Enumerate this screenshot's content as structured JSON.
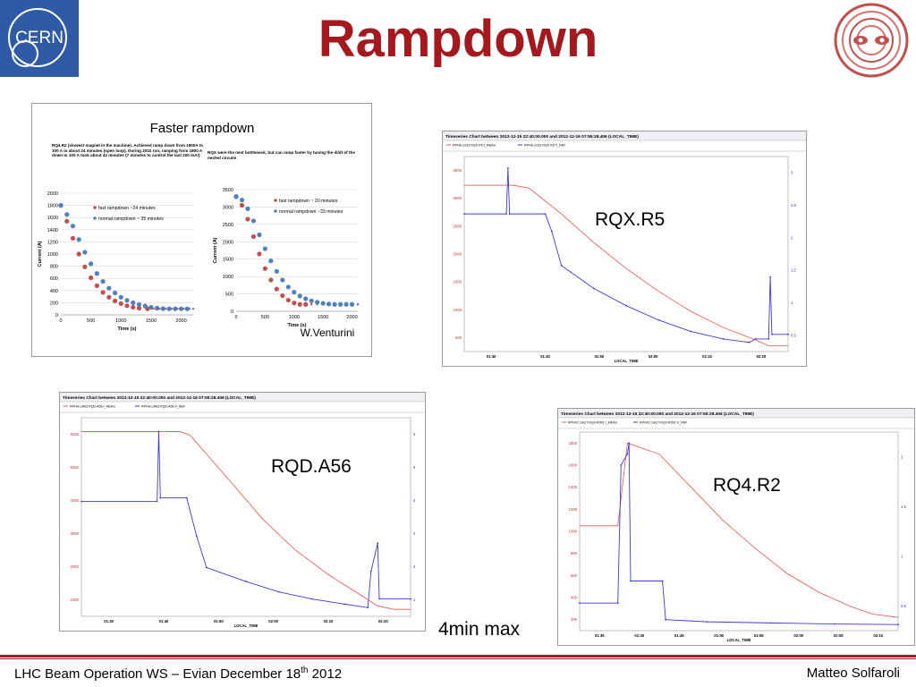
{
  "slide": {
    "title": "Rampdown",
    "footer_left_main": "LHC Beam Operation WS – Evian December 18",
    "footer_left_sup": "th",
    "footer_left_end": " 2012",
    "footer_right": "Matteo Solfaroli",
    "logo_cern_text": "CERN",
    "credit": "W.Venturini",
    "note": "4min max",
    "label_rqx": "RQX.R5",
    "label_rqd": "RQD.A56",
    "label_rq4": "RQ4.R2"
  },
  "colors": {
    "title": "#a3191d",
    "fast": "#c0504d",
    "normal": "#4f81bd",
    "trace_red": "#e8534a",
    "trace_blue": "#3a3ad8"
  },
  "chart_data": [
    {
      "type": "scatter",
      "title": "Faster rampdown",
      "note_left": "RQ4.R2 (slowest magnet in the machine). Achieved ramp down from 1900A to 100 A in about 24 minutes (open loop). During 2010 run, ramping from 1800 A down to 100 A took about 42 minutes (7 minutes to control the last 200 mA!)",
      "note_right": "RQX were the next bottleneck, but can ramp faster by tuning the di/dt of the nested circuits",
      "subcharts": [
        {
          "xlabel": "Time (s)",
          "ylabel": "Current (A)",
          "xlim": [
            0,
            2200
          ],
          "ylim": [
            0,
            2000
          ],
          "xticks": [
            0,
            500,
            1000,
            1500,
            2000
          ],
          "yticks": [
            0,
            200,
            400,
            600,
            800,
            1000,
            1200,
            1400,
            1600,
            1800,
            2000
          ],
          "series": [
            {
              "name": "fast rampdown ~24 minutes",
              "color": "#c0504d",
              "x": [
                0,
                100,
                200,
                300,
                400,
                500,
                600,
                700,
                800,
                900,
                1000,
                1100,
                1200,
                1300,
                1440
              ],
              "y": [
                1800,
                1540,
                1260,
                1000,
                790,
                610,
                480,
                370,
                290,
                230,
                185,
                150,
                125,
                110,
                100
              ]
            },
            {
              "name": "normal rampdown ~ 35 minutes",
              "color": "#4f81bd",
              "x": [
                0,
                100,
                200,
                300,
                400,
                500,
                600,
                700,
                800,
                900,
                1000,
                1100,
                1200,
                1300,
                1400,
                1500,
                1600,
                1700,
                1800,
                1900,
                2000,
                2100
              ],
              "y": [
                1800,
                1650,
                1460,
                1240,
                1030,
                840,
                680,
                550,
                440,
                360,
                290,
                240,
                200,
                170,
                145,
                125,
                110,
                103,
                100,
                100,
                100,
                100
              ]
            }
          ]
        },
        {
          "xlabel": "Time (s)",
          "ylabel": "Current (A)",
          "xlim": [
            0,
            2100
          ],
          "ylim": [
            0,
            3500
          ],
          "xticks": [
            0,
            500,
            1000,
            1500,
            2000
          ],
          "yticks": [
            0,
            500,
            1000,
            1500,
            2000,
            2500,
            3000,
            3500
          ],
          "series": [
            {
              "name": "fast rampdown ~ 20 minutes",
              "color": "#c0504d",
              "x": [
                0,
                100,
                200,
                300,
                400,
                500,
                600,
                700,
                800,
                900,
                1000,
                1100,
                1200
              ],
              "y": [
                3300,
                3050,
                2650,
                2150,
                1650,
                1230,
                900,
                640,
                450,
                320,
                240,
                200,
                200
              ]
            },
            {
              "name": "normal rampdown ~33 minutes",
              "color": "#4f81bd",
              "x": [
                0,
                100,
                200,
                300,
                400,
                500,
                600,
                700,
                800,
                900,
                1000,
                1100,
                1200,
                1300,
                1400,
                1500,
                1600,
                1700,
                1800,
                1900,
                2000
              ],
              "y": [
                3300,
                3200,
                2950,
                2600,
                2200,
                1800,
                1450,
                1150,
                900,
                700,
                550,
                440,
                360,
                300,
                260,
                230,
                210,
                200,
                200,
                200,
                200
              ]
            }
          ]
        }
      ]
    },
    {
      "type": "line",
      "name": "rqx",
      "header": "Timeseries Chart between 2012-12-15 22:40:00.000 and 2012-12-16 07:55:28.406 (LOCAL_TIME)",
      "legend": [
        "RPHE.UJ33.RQX.R5:I_MEAS",
        "RPHE.UJ33.RQX.R5:V_REF"
      ],
      "xlabel": "LOCAL_TIME",
      "xticks": [
        "01:30",
        "01:40",
        "01:50",
        "02:00",
        "02:10",
        "02:20"
      ],
      "yticks_left": [
        "500",
        "1000",
        "1500",
        "2000",
        "2500",
        "3000",
        "3500"
      ],
      "yticks_right": [
        "0.5",
        "1",
        "1.5",
        "2",
        "2.5",
        "3"
      ],
      "red_trace": [
        [
          0,
          3200
        ],
        [
          0.15,
          3200
        ],
        [
          0.2,
          3150
        ],
        [
          0.3,
          2700
        ],
        [
          0.4,
          2200
        ],
        [
          0.5,
          1750
        ],
        [
          0.6,
          1350
        ],
        [
          0.7,
          1000
        ],
        [
          0.8,
          720
        ],
        [
          0.9,
          500
        ],
        [
          0.94,
          400
        ],
        [
          1.0,
          400
        ]
      ],
      "blue_trace": [
        [
          0,
          2700
        ],
        [
          0.13,
          2700
        ],
        [
          0.135,
          3500
        ],
        [
          0.14,
          2700
        ],
        [
          0.25,
          2700
        ],
        [
          0.27,
          2400
        ],
        [
          0.3,
          1800
        ],
        [
          0.4,
          1400
        ],
        [
          0.5,
          1100
        ],
        [
          0.6,
          850
        ],
        [
          0.7,
          650
        ],
        [
          0.8,
          520
        ],
        [
          0.88,
          460
        ],
        [
          0.9,
          520
        ],
        [
          0.94,
          520
        ],
        [
          0.945,
          1600
        ],
        [
          0.95,
          600
        ],
        [
          1.0,
          600
        ]
      ]
    },
    {
      "type": "line",
      "name": "rqd",
      "header": "Timeseries Chart between 2012-12-15 22:40:00.000 and 2012-12-16 07:55:28.406 (LOCAL_TIME)",
      "legend": [
        "RPHH.UA63.RQD.A56:I_MEAS",
        "RPHH.UA63.RQD.A56:V_REF"
      ],
      "xlabel": "LOCAL_TIME",
      "xticks": [
        "01:30",
        "01:40",
        "01:50",
        "02:00",
        "02:10",
        "02:20"
      ],
      "yticks_left": [
        "1000",
        "2000",
        "3000",
        "4000",
        "5000",
        "6000"
      ],
      "yticks_right": [
        "1",
        "2",
        "3",
        "4",
        "5",
        "6"
      ],
      "red_trace": [
        [
          0,
          6000
        ],
        [
          0.3,
          6000
        ],
        [
          0.33,
          5900
        ],
        [
          0.45,
          4600
        ],
        [
          0.55,
          3500
        ],
        [
          0.65,
          2600
        ],
        [
          0.75,
          1900
        ],
        [
          0.85,
          1300
        ],
        [
          0.9,
          1000
        ],
        [
          0.95,
          900
        ],
        [
          1.0,
          900
        ]
      ],
      "blue_trace": [
        [
          0,
          4000
        ],
        [
          0.23,
          4000
        ],
        [
          0.235,
          6000
        ],
        [
          0.24,
          4100
        ],
        [
          0.32,
          4100
        ],
        [
          0.35,
          3000
        ],
        [
          0.38,
          2100
        ],
        [
          0.5,
          1700
        ],
        [
          0.6,
          1400
        ],
        [
          0.7,
          1200
        ],
        [
          0.8,
          1050
        ],
        [
          0.87,
          950
        ],
        [
          0.88,
          2000
        ],
        [
          0.9,
          2800
        ],
        [
          0.905,
          1200
        ],
        [
          1.0,
          1200
        ]
      ]
    },
    {
      "type": "line",
      "name": "rq4",
      "header": "Timeseries Chart between 2012-12-15 22:40:00.000 and 2012-12-16 07:55:28.406 (LOCAL_TIME)",
      "legend": [
        "RPHFC.UA27.RQ4.R2B1:I_MEAS",
        "RPHFC.UA27.RQ4.R2B1:V_REF"
      ],
      "xlabel": "LOCAL_TIME",
      "xticks": [
        "01:35",
        "01:40",
        "01:45",
        "01:50",
        "01:55",
        "02:00",
        "02:05",
        "02:10"
      ],
      "yticks_left": [
        "200",
        "400",
        "600",
        "800",
        "1000",
        "1200",
        "1400",
        "1600",
        "1800"
      ],
      "yticks_right": [
        "0.5",
        "1",
        "1.5",
        "2"
      ],
      "red_trace": [
        [
          0,
          1050
        ],
        [
          0.12,
          1050
        ],
        [
          0.15,
          1800
        ],
        [
          0.25,
          1700
        ],
        [
          0.35,
          1400
        ],
        [
          0.45,
          1100
        ],
        [
          0.55,
          850
        ],
        [
          0.65,
          620
        ],
        [
          0.75,
          450
        ],
        [
          0.85,
          320
        ],
        [
          0.92,
          250
        ],
        [
          1.0,
          220
        ]
      ],
      "blue_trace": [
        [
          0,
          350
        ],
        [
          0.12,
          350
        ],
        [
          0.13,
          1600
        ],
        [
          0.15,
          1700
        ],
        [
          0.155,
          1800
        ],
        [
          0.16,
          550
        ],
        [
          0.26,
          550
        ],
        [
          0.27,
          200
        ],
        [
          0.4,
          180
        ],
        [
          0.6,
          170
        ],
        [
          0.8,
          160
        ],
        [
          1.0,
          155
        ]
      ]
    }
  ]
}
